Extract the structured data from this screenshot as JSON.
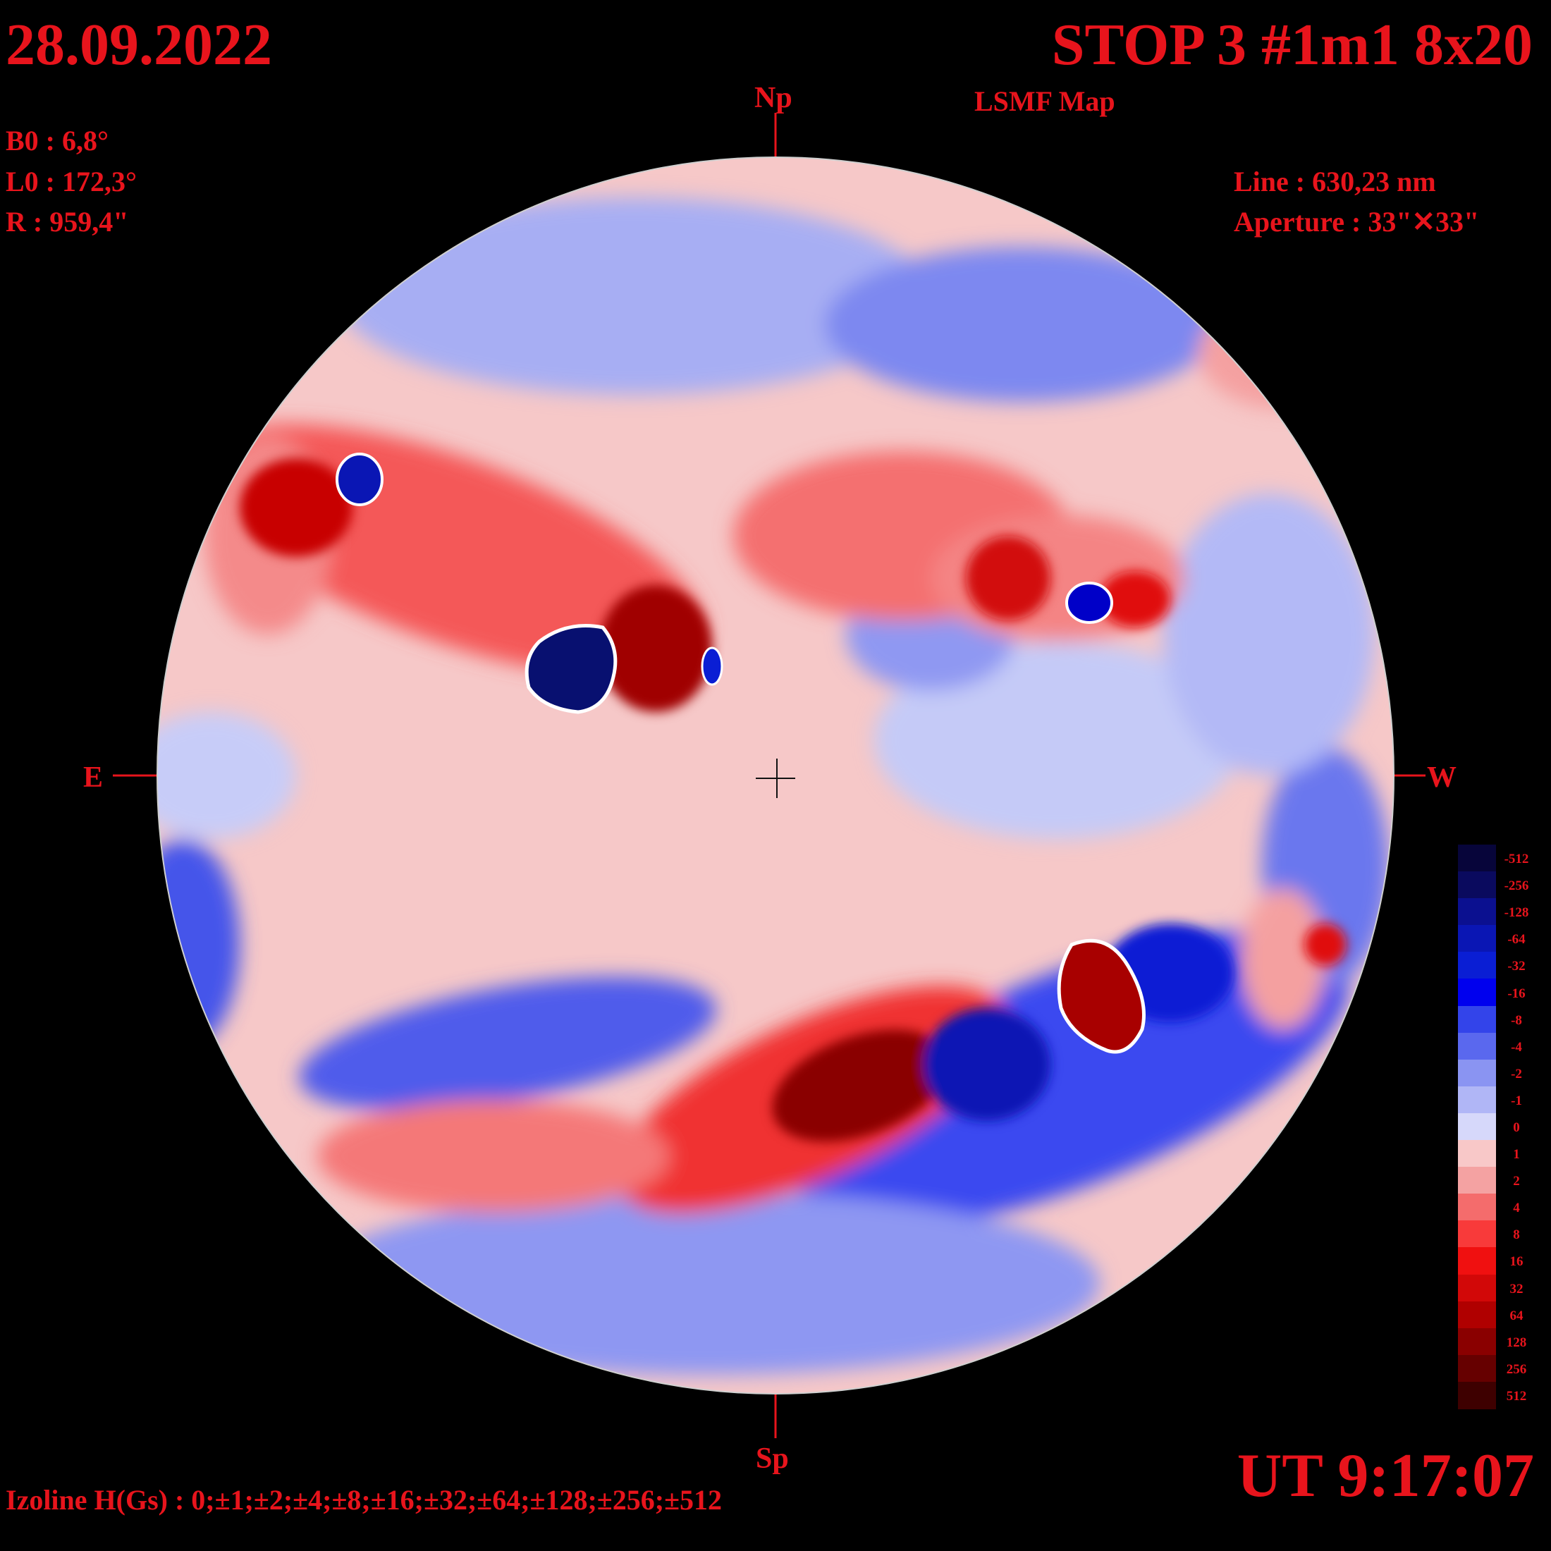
{
  "header": {
    "date": "28.09.2022",
    "title": "STOP 3 #1m1 8x20",
    "subtitle": "LSMF  Map"
  },
  "ephemeris": {
    "b0": "B0 : 6,8°",
    "l0": "L0 : 172,3°",
    "radius": "R  : 959,4\""
  },
  "instrument": {
    "line": "Line :  630,23 nm",
    "aperture": "Aperture : 33\"✕33\""
  },
  "orientation": {
    "north": "Np",
    "south": "Sp",
    "east": "E",
    "west": "W"
  },
  "time": "UT 9:17:07",
  "isoline_note": "Izoline H(Gs) : 0;±1;±2;±4;±8;±16;±32;±64;±128;±256;±512",
  "colors": {
    "background": "#000000",
    "text": "#e8141c",
    "neutral_positive": "#f6c8c8",
    "neutral_negative": "#c8ccf6",
    "contour_zero": "#ffffff"
  },
  "color_scale": [
    {
      "label": "-512",
      "color": "#07053a"
    },
    {
      "label": "-256",
      "color": "#0a0a5e"
    },
    {
      "label": "-128",
      "color": "#0b1090"
    },
    {
      "label": "-64",
      "color": "#0a16b4"
    },
    {
      "label": "-32",
      "color": "#0a1ed4"
    },
    {
      "label": "-16",
      "color": "#0000ee"
    },
    {
      "label": "-8",
      "color": "#3344ea"
    },
    {
      "label": "-4",
      "color": "#5a68ee"
    },
    {
      "label": "-2",
      "color": "#8a94f2"
    },
    {
      "label": "-1",
      "color": "#b0b6f6"
    },
    {
      "label": "0",
      "color": "#d6d8fa"
    },
    {
      "label": "1",
      "color": "#f8c8c8"
    },
    {
      "label": "2",
      "color": "#f4a2a2"
    },
    {
      "label": "4",
      "color": "#f46c6c"
    },
    {
      "label": "8",
      "color": "#f83a3a"
    },
    {
      "label": "16",
      "color": "#f01010"
    },
    {
      "label": "32",
      "color": "#d20808"
    },
    {
      "label": "64",
      "color": "#b00000"
    },
    {
      "label": "128",
      "color": "#8a0000"
    },
    {
      "label": "256",
      "color": "#660000"
    },
    {
      "label": "512",
      "color": "#3e0000"
    }
  ]
}
